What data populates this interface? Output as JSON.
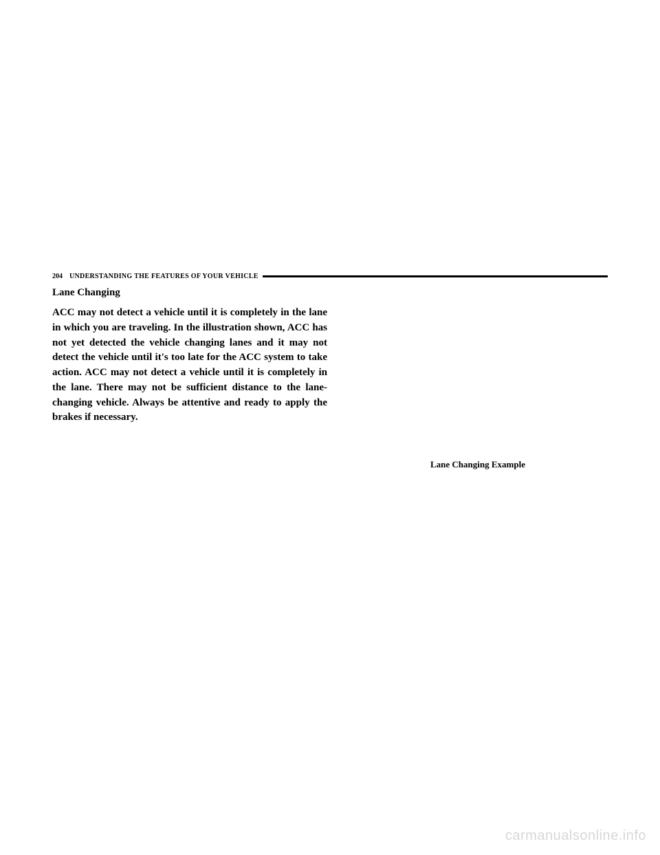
{
  "header": {
    "page_number": "204",
    "title": "UNDERSTANDING THE FEATURES OF YOUR VEHICLE"
  },
  "section": {
    "heading": "Lane Changing",
    "body": "ACC may not detect a vehicle until it is completely in the lane in which you are traveling. In the illustration shown, ACC has not yet detected the vehicle changing lanes and it may not detect the vehicle until it's too late for the ACC system to take action. ACC may not detect a vehicle until it is completely in the lane. There may not be sufficient distance to the lane-changing vehicle. Always be attentive and ready to apply the brakes if necessary."
  },
  "figure": {
    "caption": "Lane Changing Example"
  },
  "watermark": "carmanualsonline.info"
}
